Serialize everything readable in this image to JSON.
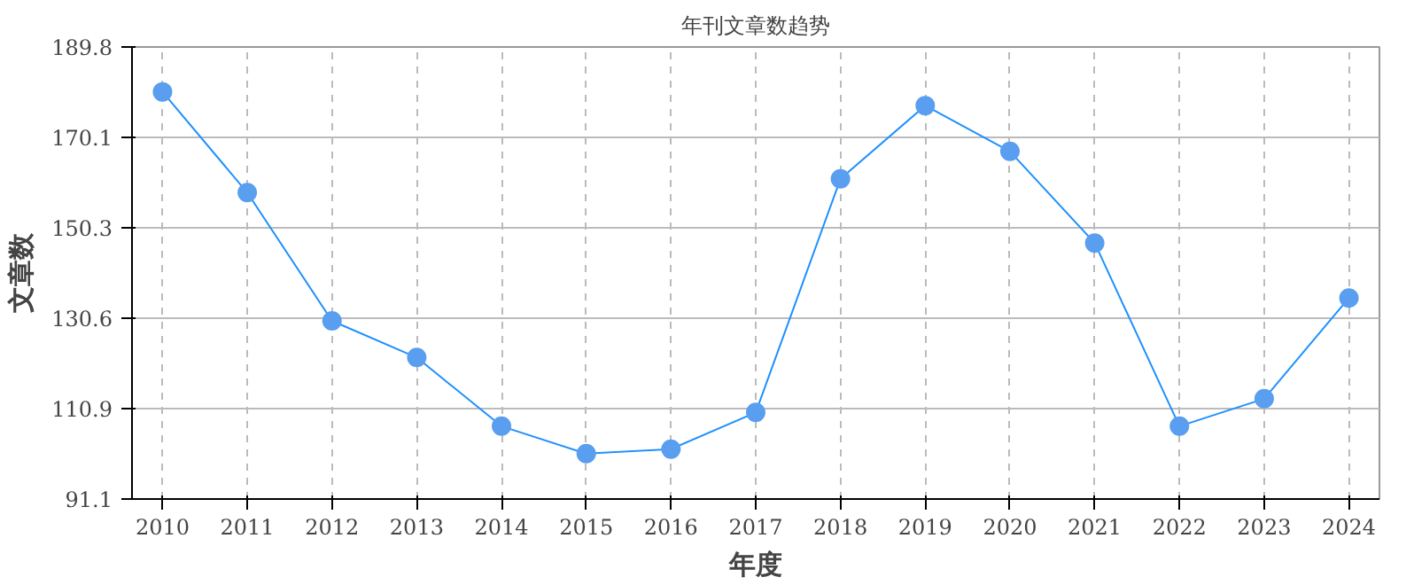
{
  "chart_data": {
    "type": "line",
    "title": "年刊文章数趋势",
    "xlabel": "年度",
    "ylabel": "文章数",
    "categories": [
      "2010",
      "2011",
      "2012",
      "2013",
      "2014",
      "2015",
      "2016",
      "2017",
      "2018",
      "2019",
      "2020",
      "2021",
      "2022",
      "2023",
      "2024"
    ],
    "series": [
      {
        "color": "#1e90ff",
        "values": [
          180,
          158,
          130,
          122,
          107,
          101,
          102,
          110,
          161,
          177,
          167,
          147,
          107,
          113,
          135
        ]
      }
    ],
    "ylim": [
      91.1,
      189.8
    ],
    "yticks": [
      91.1,
      110.9,
      130.6,
      150.3,
      170.1,
      189.8
    ],
    "grid": true,
    "marker": "circle",
    "line_style": "solid"
  }
}
